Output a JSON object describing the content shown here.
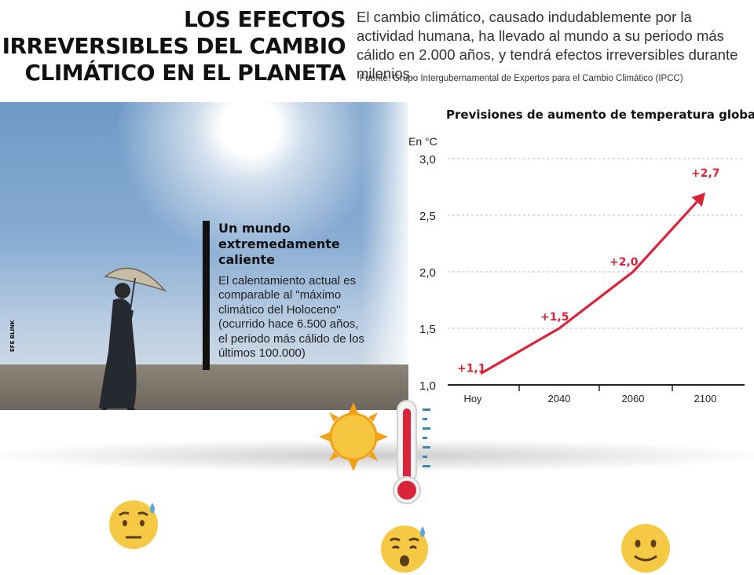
{
  "header": {
    "title_lines": [
      "LOS EFECTOS",
      "IRREVERSIBLES DEL CAMBIO",
      "CLIMÁTICO EN EL PLANETA"
    ],
    "intro": "El cambio climático, causado indudablemente por la actividad humana, ha llevado al mundo a su periodo más cálido en 2.000 años, y tendrá efectos irreversibles durante milenios.",
    "source": "Fuente: Grupo Intergubernamental de Expertos para el Cambio Climático (IPCC)"
  },
  "photo": {
    "agency_logo": "EFE BLINK"
  },
  "callout": {
    "title": "Un mundo extremedamente caliente",
    "body": "El calentamiento actual es comparable al \"máximo climático del Holoceno\" (ocurrido hace 6.500 años, el periodo más cálido de los últimos 100.000)"
  },
  "chart_data": {
    "type": "line",
    "title": "Previsiones de aumento de temperatura global*",
    "ylabel": "En °C",
    "x": [
      "Hoy",
      "2040",
      "2060",
      "2100"
    ],
    "y": [
      1.1,
      1.5,
      2.0,
      2.7
    ],
    "point_labels": [
      "+1,1",
      "+1,5",
      "+2,0",
      "+2,7"
    ],
    "y_ticks": [
      1.0,
      1.5,
      2.0,
      2.5,
      3.0
    ],
    "y_tick_labels": [
      "1,0",
      "1,5",
      "2,0",
      "2,5",
      "3,0"
    ],
    "ylim": [
      1.0,
      3.0
    ],
    "grid": true,
    "colors": {
      "line": "#d9243b",
      "grid": "#bdbdbd",
      "axis": "#222222"
    }
  },
  "icons": {
    "sun": "sun-icon",
    "thermometer": "thermometer-icon",
    "emojis": [
      "sad-face-icon",
      "sweating-face-icon",
      "smiling-face-icon"
    ]
  },
  "colors": {
    "accent": "#d9243b",
    "emoji": "#f6c945"
  }
}
